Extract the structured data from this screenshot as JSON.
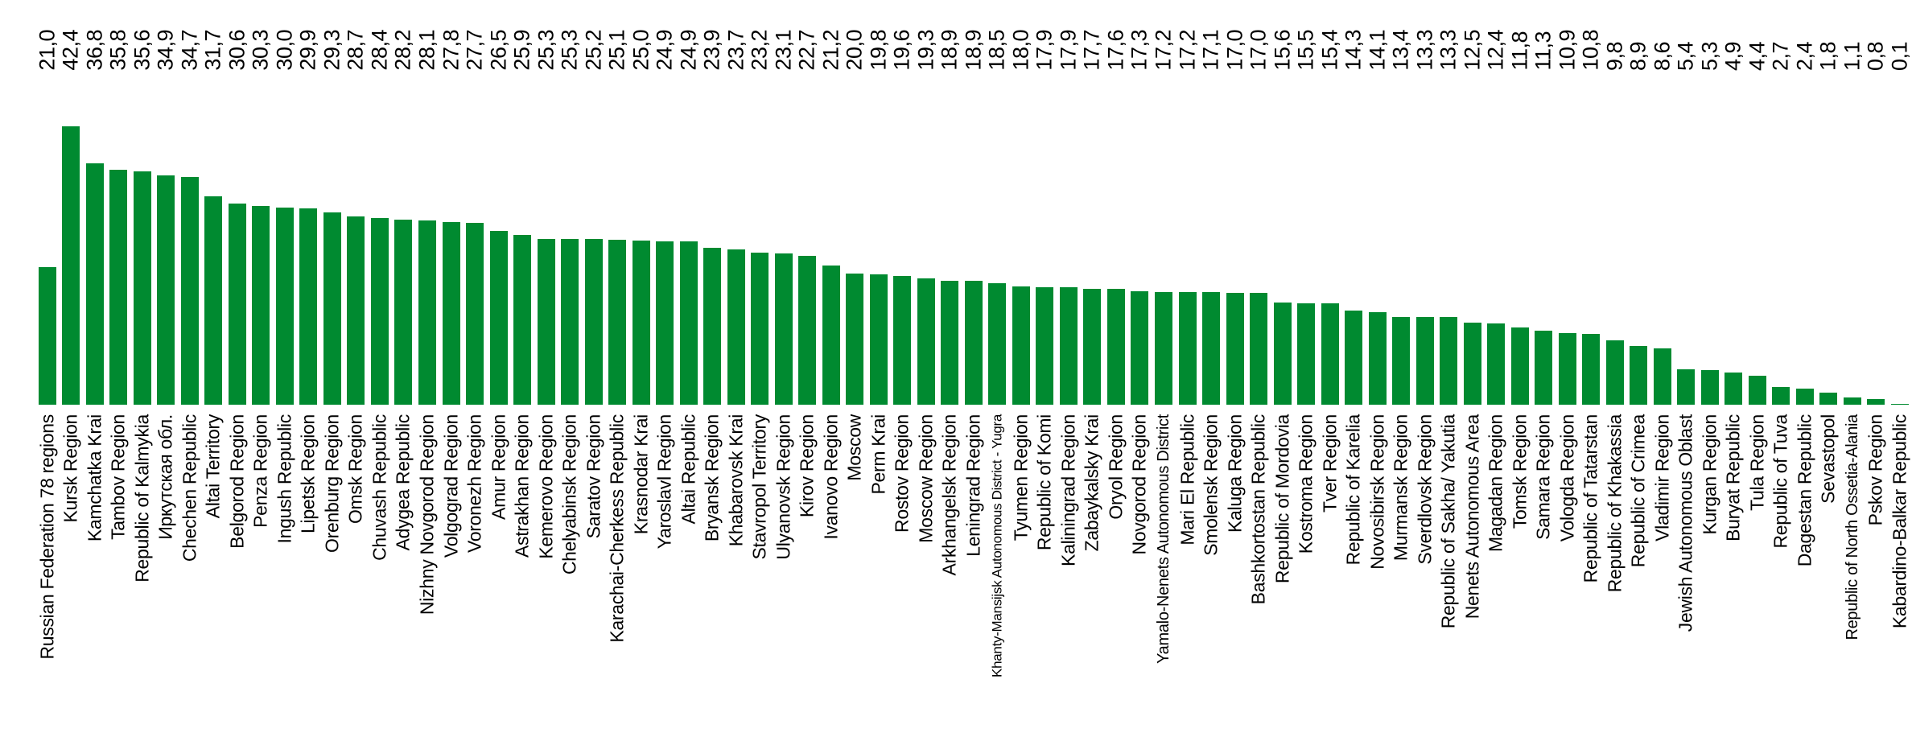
{
  "chart_data": {
    "type": "bar",
    "title": "",
    "xlabel": "",
    "ylabel": "",
    "grid": false,
    "legend": false,
    "ylim": [
      0,
      42.4
    ],
    "bar_color": "#008A30",
    "text_color": "#000000",
    "background_color": "#FFFFFF",
    "value_label_position": "top-band-rotated-90",
    "category_label_position": "bottom-rotated-90",
    "categories": [
      "Russian Federation 78 regions",
      "Kursk Region",
      "Kamchatka Krai",
      "Tambov Region",
      "Republic of Kalmykia",
      "Иркутская обл.",
      "Chechen Republic",
      "Altai Territory",
      "Belgorod Region",
      "Penza Region",
      "Ingush Republic",
      "Lipetsk Region",
      "Orenburg Region",
      "Omsk Region",
      "Chuvash Republic",
      "Adygea Republic",
      "Nizhny Novgorod Region",
      "Volgograd Region",
      "Voronezh Region",
      "Amur Region",
      "Astrakhan Region",
      "Kemerovo Region",
      "Chelyabinsk Region",
      "Saratov Region",
      "Karachai-Cherkess Republic",
      "Krasnodar Krai",
      "Yaroslavl Region",
      "Altai Republic",
      "Bryansk Region",
      "Khabarovsk Krai",
      "Stavropol Territory",
      "Ulyanovsk Region",
      "Kirov Region",
      "Ivanovo Region",
      "Moscow",
      "Perm Krai",
      "Rostov Region",
      "Moscow Region",
      "Arkhangelsk Region",
      "Leningrad Region",
      "Khanty-Mansijsk Autonomous District - Yugra",
      "Tyumen Region",
      "Republic of Komi",
      "Kaliningrad Region",
      "Zabaykalsky Krai",
      "Oryol Region",
      "Novgorod Region",
      "Yamalo-Nenets Autonomous District",
      "Mari El Republic",
      "Smolensk Region",
      "Kaluga Region",
      "Bashkortostan Republic",
      "Republic of Mordovia",
      "Kostroma Region",
      "Tver Region",
      "Republic of Karelia",
      "Novosibirsk Region",
      "Murmansk Region",
      "Sverdlovsk Region",
      "Republic of Sakha/ Yakutia",
      "Nenets Autonomous Area",
      "Magadan Region",
      "Tomsk Region",
      "Samara Region",
      "Vologda Region",
      "Republic of Tatarstan",
      "Republic of Khakassia",
      "Republic of Crimea",
      "Vladimir Region",
      "Jewish Autonomous Oblast",
      "Kurgan Region",
      "Buryat Republic",
      "Tula Region",
      "Republic of Tuva",
      "Dagestan Republic",
      "Sevastopol",
      "Republic of North Ossetia-Alania",
      "Pskov Region",
      "Kabardino-Balkar Republic"
    ],
    "values": [
      21.0,
      42.4,
      36.8,
      35.8,
      35.6,
      34.9,
      34.7,
      31.7,
      30.6,
      30.3,
      30.0,
      29.9,
      29.3,
      28.7,
      28.4,
      28.2,
      28.1,
      27.8,
      27.7,
      26.5,
      25.9,
      25.3,
      25.3,
      25.2,
      25.1,
      25.0,
      24.9,
      24.9,
      23.9,
      23.7,
      23.2,
      23.1,
      22.7,
      21.2,
      20.0,
      19.8,
      19.6,
      19.3,
      18.9,
      18.9,
      18.5,
      18.0,
      17.9,
      17.9,
      17.7,
      17.6,
      17.3,
      17.2,
      17.2,
      17.1,
      17.0,
      17.0,
      15.6,
      15.5,
      15.4,
      14.3,
      14.1,
      13.4,
      13.3,
      13.3,
      12.5,
      12.4,
      11.8,
      11.3,
      10.9,
      10.8,
      9.8,
      8.9,
      8.6,
      5.4,
      5.3,
      4.9,
      4.4,
      2.7,
      2.4,
      1.8,
      1.1,
      0.8,
      0.1
    ],
    "value_labels": [
      "21,0",
      "42,4",
      "36,8",
      "35,8",
      "35,6",
      "34,9",
      "34,7",
      "31,7",
      "30,6",
      "30,3",
      "30,0",
      "29,9",
      "29,3",
      "28,7",
      "28,4",
      "28,2",
      "28,1",
      "27,8",
      "27,7",
      "26,5",
      "25,9",
      "25,3",
      "25,3",
      "25,2",
      "25,1",
      "25,0",
      "24,9",
      "24,9",
      "23,9",
      "23,7",
      "23,2",
      "23,1",
      "22,7",
      "21,2",
      "20,0",
      "19,8",
      "19,6",
      "19,3",
      "18,9",
      "18,9",
      "18,5",
      "18,0",
      "17,9",
      "17,9",
      "17,7",
      "17,6",
      "17,3",
      "17,2",
      "17,2",
      "17,1",
      "17,0",
      "17,0",
      "15,6",
      "15,5",
      "15,4",
      "14,3",
      "14,1",
      "13,4",
      "13,3",
      "13,3",
      "12,5",
      "12,4",
      "11,8",
      "11,3",
      "10,9",
      "10,8",
      "9,8",
      "8,9",
      "8,6",
      "5,4",
      "5,3",
      "4,9",
      "4,4",
      "2,7",
      "2,4",
      "1,8",
      "1,1",
      "0,8",
      "0,1"
    ]
  }
}
